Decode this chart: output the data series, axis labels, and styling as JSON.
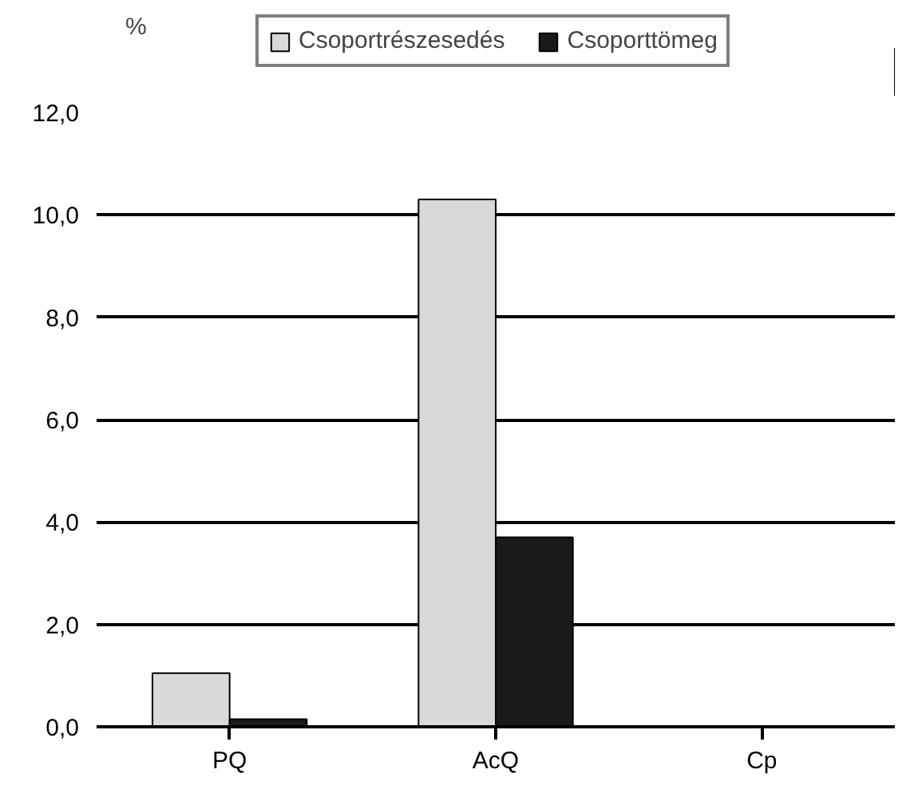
{
  "chart_data": {
    "type": "bar",
    "ylabel": "%",
    "categories": [
      "PQ",
      "AcQ",
      "Cp"
    ],
    "series": [
      {
        "name": "Csoportrészesedés",
        "color": "#d9d9d9",
        "values": [
          1.05,
          10.3,
          null
        ]
      },
      {
        "name": "Csoporttömeg",
        "color": "#1a1a1a",
        "values": [
          0.15,
          3.7,
          null
        ]
      }
    ],
    "ylim": [
      0,
      12
    ],
    "yticks": [
      {
        "value": 0,
        "label": "0,0"
      },
      {
        "value": 2,
        "label": "2,0"
      },
      {
        "value": 4,
        "label": "4,0"
      },
      {
        "value": 6,
        "label": "6,0"
      },
      {
        "value": 8,
        "label": "8,0"
      },
      {
        "value": 10,
        "label": "10,0"
      },
      {
        "value": 12,
        "label": "12,0"
      }
    ],
    "grid": "y",
    "legend": "top"
  }
}
